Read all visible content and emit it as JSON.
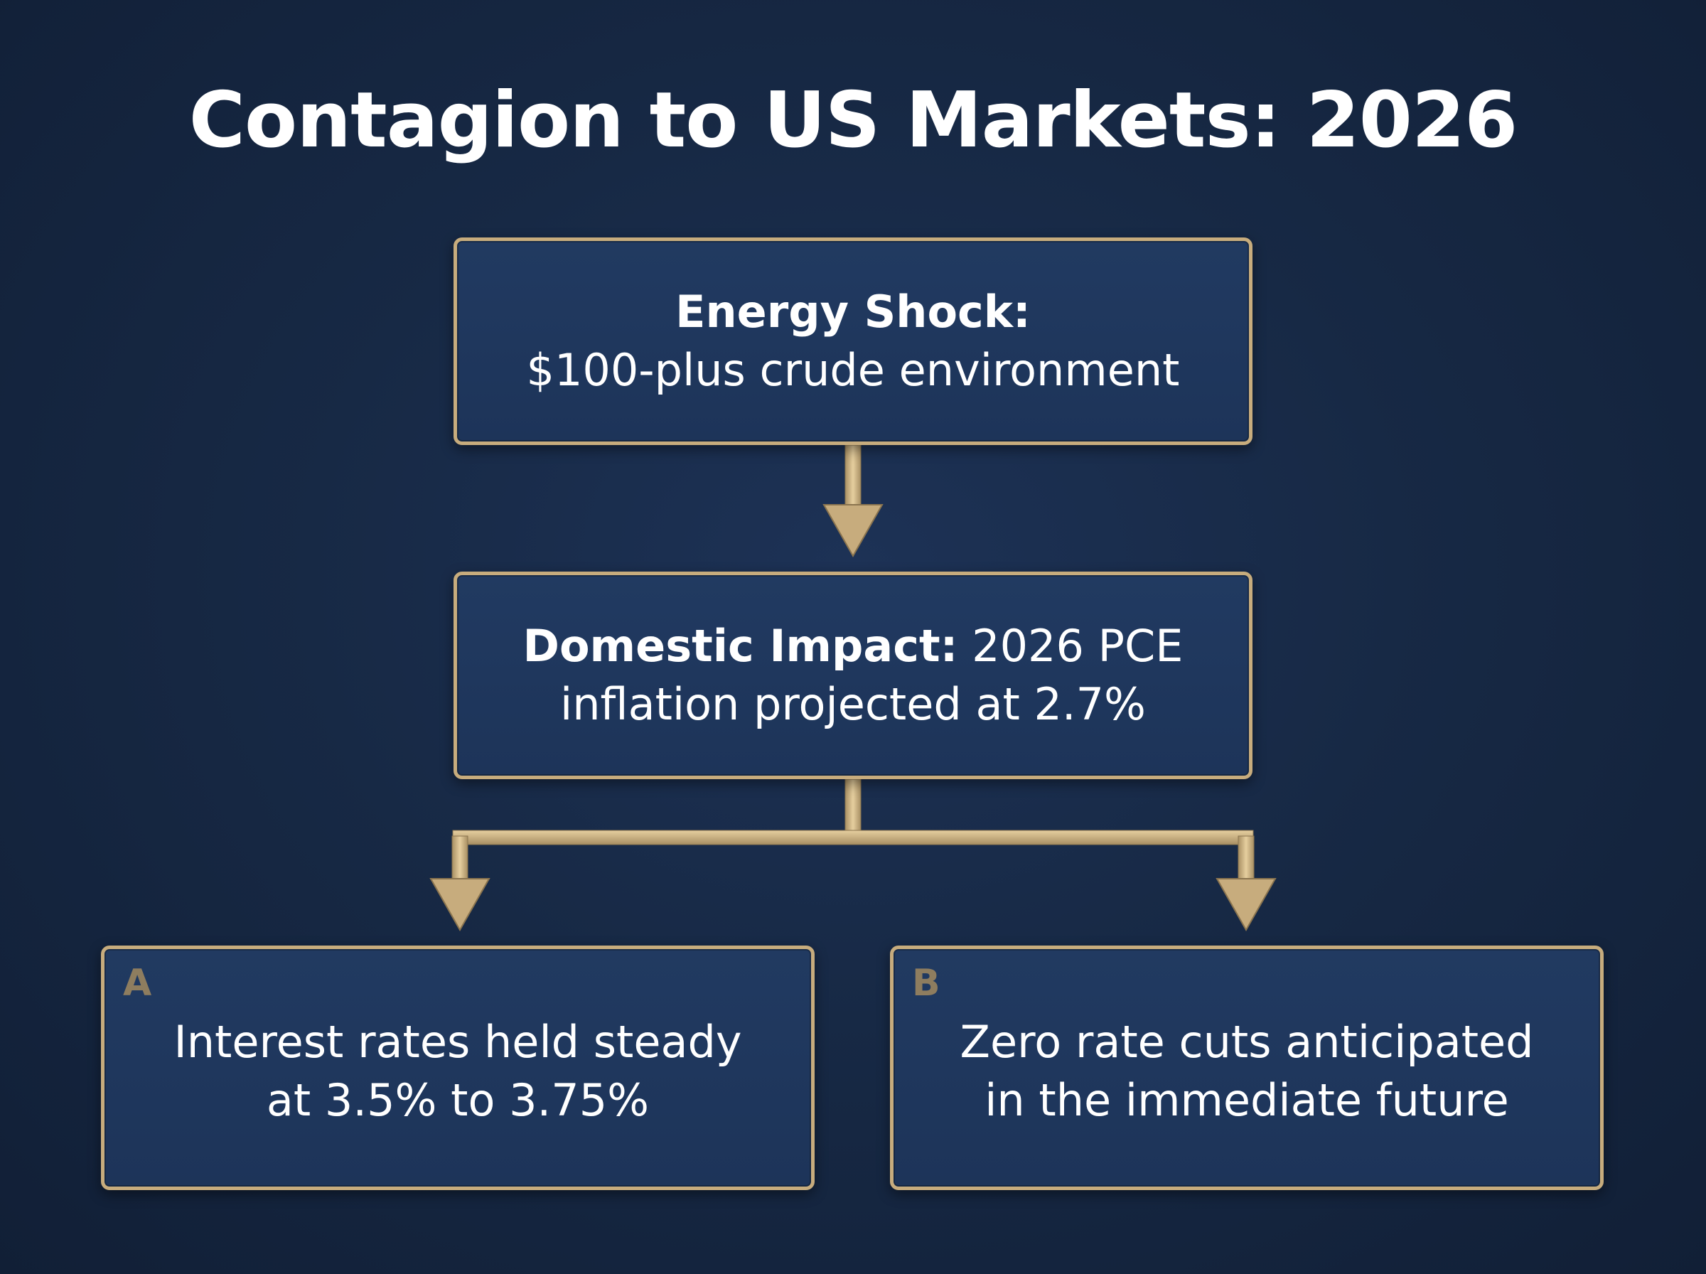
{
  "title": "Contagion to US Markets: 2026",
  "colors": {
    "background": "#172945",
    "box_fill": "#213a61",
    "accent_gold": "#c7ac7d",
    "badge_text": "#8e7d5f",
    "text": "#ffffff"
  },
  "nodes": {
    "energy_shock": {
      "heading": "Energy Shock:",
      "text": "$100-plus crude environment"
    },
    "domestic_impact": {
      "heading": "Domestic Impact:",
      "text_line1": " 2026 PCE",
      "text_line2": "inflation projected at 2.7%"
    },
    "outcome_a": {
      "badge": "A",
      "line1": "Interest rates held steady",
      "line2": "at 3.5% to 3.75%"
    },
    "outcome_b": {
      "badge": "B",
      "line1": "Zero rate cuts anticipated",
      "line2": "in the immediate future"
    }
  },
  "edges": [
    {
      "from": "energy_shock",
      "to": "domestic_impact"
    },
    {
      "from": "domestic_impact",
      "to": "outcome_a"
    },
    {
      "from": "domestic_impact",
      "to": "outcome_b"
    }
  ]
}
